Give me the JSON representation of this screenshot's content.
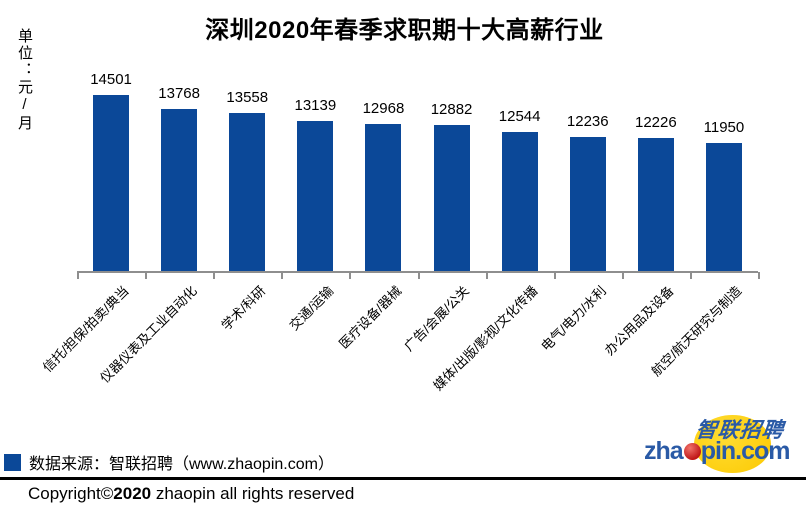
{
  "chart_data": {
    "type": "bar",
    "title": "深圳2020年春季求职期十大高薪行业",
    "ylabel": "单位：元/月",
    "categories": [
      "信托/担保/拍卖/典当",
      "仪器仪表及工业自动化",
      "学术/科研",
      "交通/运输",
      "医疗设备/器械",
      "广告/会展/公关",
      "媒体/出版/影视/文化传播",
      "电气/电力/水利",
      "办公用品及设备",
      "航空/航天研究与制造"
    ],
    "values": [
      14501,
      13768,
      13558,
      13139,
      12968,
      12882,
      12544,
      12236,
      12226,
      11950
    ],
    "xlabel": "",
    "ylim": [
      5000,
      15000
    ],
    "grid": false,
    "data_labels": true,
    "legend_position": "bottom-left",
    "bar_color": "#0b4898",
    "axis_color": "#8e8e8e"
  },
  "footer": {
    "source_label": "数据来源：智联招聘（www.zhaopin.com）",
    "copyright_prefix": "Copyright©",
    "copyright_year": "2020",
    "copyright_suffix": " zhaopin all rights reserved"
  },
  "logo": {
    "cn_text": "智联招聘",
    "en_prefix": "zha",
    "en_suffix": "pin.com",
    "blue": "#2a5aa6",
    "yellow": "#fcc800",
    "red": "#c01818"
  }
}
